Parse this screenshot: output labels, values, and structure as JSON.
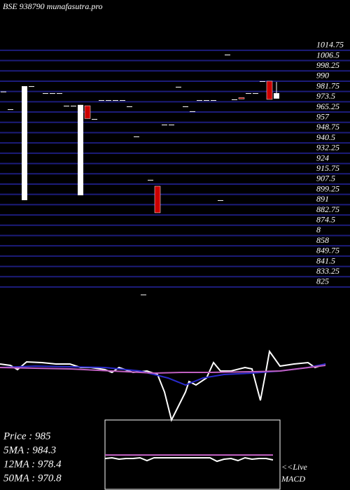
{
  "chart_data": [
    {
      "type": "candlestick",
      "title": "BSE 938790 munafasutra.pro",
      "categories": [
        null,
        null,
        null,
        null,
        null,
        null,
        null,
        null,
        null,
        null,
        null,
        null,
        null,
        null,
        null,
        null,
        null,
        null,
        null,
        null,
        null,
        null,
        null,
        null,
        null,
        null,
        null,
        null,
        null,
        null,
        null,
        null,
        null,
        null,
        null,
        null,
        null,
        null,
        null,
        null
      ],
      "open": [
        981.7,
        967.5,
        null,
        894.6,
        986,
        null,
        980.4,
        980.4,
        980.4,
        970.3,
        970.3,
        898.5,
        970.3,
        959.7,
        974.8,
        974.8,
        974.8,
        974.8,
        969.8,
        945.7,
        819,
        910.9,
        905.8,
        955.2,
        955.2,
        985.5,
        969.8,
        965.9,
        974.8,
        974.8,
        974.8,
        894.6,
        1011.3,
        975.4,
        976.8,
        980.4,
        980.4,
        990,
        990,
        976
      ],
      "high": [
        981.7,
        967.5,
        null,
        986,
        986,
        null,
        980.4,
        980.4,
        980.4,
        970.3,
        970.3,
        971,
        970.3,
        959.7,
        974.8,
        974.8,
        974.8,
        974.8,
        969.8,
        945.7,
        819,
        910.9,
        905.8,
        955.2,
        955.2,
        985.5,
        969.8,
        965.9,
        974.8,
        974.8,
        974.8,
        894.6,
        1011.3,
        975.4,
        976.8,
        980.4,
        980.4,
        990,
        990,
        989.4
      ],
      "low": [
        981.7,
        967.5,
        null,
        894.6,
        986,
        null,
        980.4,
        980.4,
        980.4,
        970.3,
        970.3,
        898.5,
        960,
        959.7,
        974.8,
        974.8,
        974.8,
        974.8,
        969.8,
        945.7,
        819,
        910.9,
        884.5,
        955.2,
        955.2,
        985.5,
        969.8,
        965.9,
        974.8,
        974.8,
        974.8,
        894.6,
        1011.3,
        975.4,
        975.8,
        980.4,
        980.4,
        990,
        975.4,
        976
      ],
      "close": [
        981.7,
        967.5,
        null,
        986,
        986,
        null,
        980.4,
        980.4,
        980.4,
        970.3,
        970.3,
        971,
        960,
        959.7,
        974.8,
        974.8,
        974.8,
        974.8,
        969.8,
        945.7,
        819,
        910.9,
        884.5,
        955.2,
        955.2,
        985.5,
        969.8,
        965.9,
        974.8,
        974.8,
        974.8,
        894.6,
        1011.3,
        975.4,
        975.8,
        980.4,
        980.4,
        990,
        975.4,
        980.4
      ],
      "up_color": "#ffffff",
      "down_color": "#cc0000",
      "grid_color": "#1c1c7a",
      "ylim": [
        810,
        1020
      ],
      "yticks": [
        1014.75,
        1006.5,
        998.25,
        990,
        981.75,
        973.5,
        965.25,
        957,
        948.75,
        940.5,
        932.25,
        924,
        915.75,
        907.5,
        899.25,
        891,
        882.75,
        874.5,
        {
          "value": 866.25,
          "label": "8"
        },
        858,
        849.75,
        841.5,
        833.25,
        825
      ],
      "grid": true,
      "price_labels": [
        "Price   : 985",
        "5MA   : 984.3",
        "12MA : 978.4",
        "50MA : 970.8"
      ]
    },
    {
      "type": "line",
      "ylim": [
        -80,
        20
      ],
      "xlim": [
        0,
        470
      ],
      "series": [
        {
          "color": "#ffffff",
          "x": [
            0,
            15,
            25,
            38,
            60,
            80,
            100,
            115,
            130,
            150,
            160,
            170,
            190,
            210,
            225,
            235,
            245,
            255,
            265,
            270,
            280,
            295,
            305,
            315,
            330,
            350,
            360,
            372,
            380,
            385,
            400,
            420,
            440,
            450,
            465
          ],
          "values": [
            0,
            -2,
            -8,
            3,
            2,
            0,
            0,
            -5,
            -5,
            -8,
            -12,
            -5,
            -12,
            -10,
            -15,
            -40,
            -80,
            -60,
            -40,
            -25,
            -30,
            -20,
            2,
            -10,
            -10,
            -5,
            -7,
            -52,
            -10,
            18,
            -3,
            0,
            2,
            -5,
            0
          ]
        },
        {
          "color": "#2a2acc",
          "x": [
            0,
            50,
            100,
            150,
            200,
            240,
            265,
            290,
            320,
            360,
            400,
            440,
            465
          ],
          "values": [
            -5,
            -3,
            -4,
            -5,
            -10,
            -20,
            -30,
            -20,
            -15,
            -13,
            -10,
            -5,
            0
          ]
        },
        {
          "color": "#c060c0",
          "x": [
            0,
            100,
            160,
            220,
            260,
            300,
            360,
            400,
            465
          ],
          "values": [
            -5,
            -7,
            -10,
            -13,
            -12,
            -12,
            -11,
            -10,
            -2
          ]
        }
      ]
    },
    {
      "type": "line",
      "title": "<<Live",
      "subtitle": "MACD",
      "ylim": [
        -50,
        50
      ],
      "xlim": [
        0,
        24
      ],
      "series": [
        {
          "color": "#c060c0",
          "x": [
            0,
            24
          ],
          "values": [
            0,
            0
          ]
        },
        {
          "color": "#ffffff",
          "x": [
            0,
            1,
            2,
            3,
            4,
            5,
            6,
            7,
            8,
            9,
            10,
            11,
            12,
            13,
            14,
            15,
            16,
            17,
            18,
            19,
            20,
            21,
            22,
            23,
            24
          ],
          "values": [
            -5,
            -4,
            -6,
            -5,
            -5,
            -4,
            -8,
            -4,
            -4,
            -4,
            -4,
            -4,
            -4,
            -4,
            -4,
            -4,
            -9,
            -6,
            -5,
            -8,
            -4,
            -6,
            -5,
            -5,
            -7
          ]
        }
      ]
    }
  ]
}
